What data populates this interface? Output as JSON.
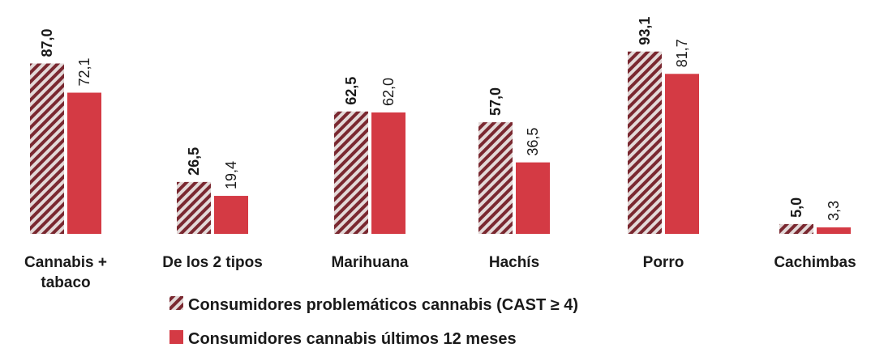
{
  "chart_data": {
    "type": "bar",
    "categories": [
      "Cannabis + tabaco",
      "De los 2 tipos",
      "Marihuana",
      "Hachís",
      "Porro",
      "Cachimbas"
    ],
    "category_lines": [
      [
        "Cannabis +",
        "tabaco"
      ],
      [
        "De los 2 tipos"
      ],
      [
        "Marihuana"
      ],
      [
        "Hachís"
      ],
      [
        "Porro"
      ],
      [
        "Cachimbas"
      ]
    ],
    "series": [
      {
        "name": "Consumidores problemáticos cannabis (CAST ≥ 4)",
        "values": [
          87.0,
          26.5,
          62.5,
          57.0,
          93.1,
          5.0
        ],
        "labels": [
          "87,0",
          "26,5",
          "62,5",
          "57,0",
          "93,1",
          "5,0"
        ],
        "style": "hatched",
        "color": "#7a2830",
        "label_weight": "bold"
      },
      {
        "name": "Consumidores cannabis últimos 12 meses",
        "values": [
          72.1,
          19.4,
          62.0,
          36.5,
          81.7,
          3.3
        ],
        "labels": [
          "72,1",
          "19,4",
          "62,0",
          "36,5",
          "81,7",
          "3,3"
        ],
        "style": "solid",
        "color": "#d43a44",
        "label_weight": "normal"
      }
    ],
    "ylim": [
      0,
      100
    ],
    "grid": false,
    "legend_position": "bottom"
  }
}
